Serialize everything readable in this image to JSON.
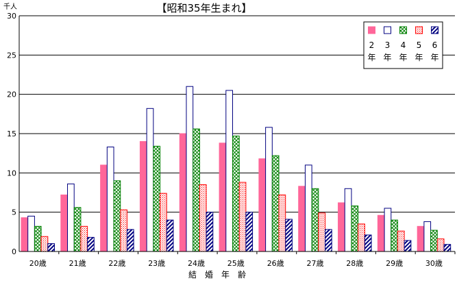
{
  "chart_data": {
    "type": "bar",
    "title": "【昭和35年生まれ】",
    "unit_label": "千人",
    "xlabel": "結　婚　年　齢",
    "ylabel": "",
    "ylim": [
      0,
      30
    ],
    "yticks": [
      "0",
      "5",
      "10",
      "15",
      "20",
      "25",
      "30"
    ],
    "grid": true,
    "legend_position": "top-right",
    "categories": [
      "20歳",
      "21歳",
      "22歳",
      "23歳",
      "24歳",
      "25歳",
      "26歳",
      "27歳",
      "28歳",
      "29歳",
      "30歳"
    ],
    "series": [
      {
        "name": "2年",
        "digit": "2",
        "suffix": "年",
        "color": "#ff6699",
        "pattern": "solid",
        "values": [
          4.3,
          7.2,
          11.0,
          14.0,
          15.0,
          13.8,
          11.8,
          8.3,
          6.2,
          4.6,
          3.2
        ]
      },
      {
        "name": "3年",
        "digit": "3",
        "suffix": "年",
        "color": "#000080",
        "pattern": "empty",
        "values": [
          4.5,
          8.6,
          13.3,
          18.2,
          21.0,
          20.5,
          15.8,
          11.0,
          8.0,
          5.5,
          3.8
        ]
      },
      {
        "name": "4年",
        "digit": "4",
        "suffix": "年",
        "color": "#008000",
        "pattern": "crosshatch",
        "values": [
          3.2,
          5.6,
          9.0,
          13.4,
          15.6,
          14.7,
          12.2,
          8.0,
          5.8,
          4.0,
          2.7
        ]
      },
      {
        "name": "5年",
        "digit": "5",
        "suffix": "年",
        "color": "#ff0000",
        "pattern": "dots",
        "values": [
          1.9,
          3.2,
          5.3,
          7.4,
          8.5,
          8.8,
          7.2,
          4.9,
          3.5,
          2.6,
          1.6
        ]
      },
      {
        "name": "6年",
        "digit": "6",
        "suffix": "年",
        "color": "#000080",
        "pattern": "diagonal",
        "values": [
          1.0,
          1.8,
          2.8,
          4.0,
          5.0,
          5.0,
          4.1,
          2.8,
          2.1,
          1.4,
          0.9
        ]
      }
    ]
  }
}
